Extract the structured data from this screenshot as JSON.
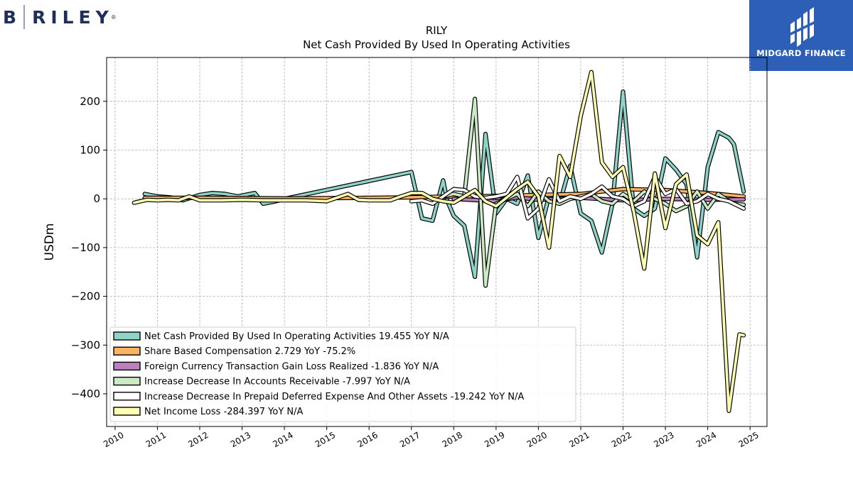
{
  "brand_left": {
    "b": "B",
    "riley": "RILEY",
    "reg": "®"
  },
  "brand_right": {
    "label": "MIDGARD FINANCE"
  },
  "chart_data": {
    "type": "line",
    "title": "RILY",
    "subtitle": "Net Cash Provided By Used In Operating Activities",
    "ylabel": "USDm",
    "xlim": [
      2009.8,
      2025.4
    ],
    "ylim": [
      -467,
      290
    ],
    "xticks": [
      2010,
      2011,
      2012,
      2013,
      2014,
      2015,
      2016,
      2017,
      2018,
      2019,
      2020,
      2021,
      2022,
      2023,
      2024,
      2025
    ],
    "xtick_labels": [
      "2010",
      "2011",
      "2012",
      "2013",
      "2014",
      "2015",
      "2016",
      "2017",
      "2018",
      "2019",
      "2020",
      "2021",
      "2022",
      "2023",
      "2024",
      "2025"
    ],
    "yticks": [
      200,
      100,
      0,
      -100,
      -200,
      -300,
      -400
    ],
    "ytick_labels": [
      "200",
      "100",
      "0",
      "−100",
      "−200",
      "−300",
      "−400"
    ],
    "grid": true,
    "legend_position": "lower-left",
    "series": [
      {
        "name": "Net Cash Provided By Used In Operating Activities  19.455 YoY N/A",
        "color": "#8dd3c7",
        "points": [
          [
            2010.7,
            10
          ],
          [
            2011.0,
            5
          ],
          [
            2011.3,
            3
          ],
          [
            2011.6,
            -3
          ],
          [
            2012.0,
            8
          ],
          [
            2012.3,
            12
          ],
          [
            2012.6,
            10
          ],
          [
            2012.9,
            5
          ],
          [
            2013.3,
            12
          ],
          [
            2013.5,
            -10
          ],
          [
            2013.8,
            -5
          ],
          [
            2014.0,
            0
          ],
          [
            2017.0,
            55
          ],
          [
            2017.25,
            -40
          ],
          [
            2017.5,
            -45
          ],
          [
            2017.75,
            38
          ],
          [
            2017.85,
            -5
          ],
          [
            2018.0,
            -35
          ],
          [
            2018.25,
            -55
          ],
          [
            2018.5,
            -160
          ],
          [
            2018.75,
            133
          ],
          [
            2019.0,
            -30
          ],
          [
            2019.25,
            0
          ],
          [
            2019.5,
            -10
          ],
          [
            2019.75,
            48
          ],
          [
            2020.0,
            -80
          ],
          [
            2020.25,
            5
          ],
          [
            2020.5,
            -10
          ],
          [
            2020.75,
            68
          ],
          [
            2021.0,
            -30
          ],
          [
            2021.25,
            -45
          ],
          [
            2021.5,
            -110
          ],
          [
            2021.75,
            -10
          ],
          [
            2022.0,
            220
          ],
          [
            2022.25,
            -20
          ],
          [
            2022.5,
            -35
          ],
          [
            2022.75,
            -20
          ],
          [
            2023.0,
            83
          ],
          [
            2023.25,
            60
          ],
          [
            2023.5,
            30
          ],
          [
            2023.75,
            -120
          ],
          [
            2024.0,
            65
          ],
          [
            2024.25,
            137
          ],
          [
            2024.5,
            125
          ],
          [
            2024.62,
            112
          ],
          [
            2024.85,
            15
          ]
        ]
      },
      {
        "name": "Share Based Compensation  2.729 YoY -75.2%",
        "color": "#fdb462",
        "points": [
          [
            2010.7,
            2
          ],
          [
            2012.0,
            2
          ],
          [
            2014.0,
            1
          ],
          [
            2016.0,
            2
          ],
          [
            2017.0,
            3
          ],
          [
            2018.0,
            5
          ],
          [
            2019.0,
            6
          ],
          [
            2020.0,
            8
          ],
          [
            2021.0,
            10
          ],
          [
            2022.0,
            20
          ],
          [
            2023.0,
            18
          ],
          [
            2024.0,
            12
          ],
          [
            2024.85,
            5
          ]
        ]
      },
      {
        "name": "Foreign Currency Transaction Gain Loss Realized  -1.836 YoY N/A",
        "color": "#bc80bd",
        "points": [
          [
            2018.0,
            0
          ],
          [
            2019.0,
            -5
          ],
          [
            2019.5,
            3
          ],
          [
            2020.0,
            -2
          ],
          [
            2021.0,
            2
          ],
          [
            2022.0,
            -3
          ],
          [
            2023.0,
            0
          ],
          [
            2024.0,
            -2
          ],
          [
            2024.85,
            -1
          ]
        ]
      },
      {
        "name": "Increase Decrease In Accounts Receivable  -7.997 YoY N/A",
        "color": "#ccebc5",
        "points": [
          [
            2017.75,
            5
          ],
          [
            2018.0,
            10
          ],
          [
            2018.25,
            5
          ],
          [
            2018.5,
            205
          ],
          [
            2018.75,
            -178
          ],
          [
            2019.0,
            -10
          ],
          [
            2019.5,
            10
          ],
          [
            2019.75,
            -15
          ],
          [
            2020.0,
            15
          ],
          [
            2020.25,
            -5
          ],
          [
            2020.5,
            -10
          ],
          [
            2020.75,
            0
          ],
          [
            2021.0,
            5
          ],
          [
            2021.25,
            10
          ],
          [
            2021.5,
            -5
          ],
          [
            2021.75,
            -10
          ],
          [
            2022.0,
            10
          ],
          [
            2022.25,
            -5
          ],
          [
            2022.5,
            15
          ],
          [
            2022.75,
            0
          ],
          [
            2023.0,
            -10
          ],
          [
            2023.25,
            -25
          ],
          [
            2023.5,
            -15
          ],
          [
            2023.75,
            15
          ],
          [
            2024.0,
            -20
          ],
          [
            2024.25,
            10
          ],
          [
            2024.5,
            -5
          ],
          [
            2024.62,
            -10
          ],
          [
            2024.85,
            -12
          ]
        ]
      },
      {
        "name": "Increase Decrease In Prepaid Deferred Expense And Other Assets  -19.242 YoY N/A",
        "color": "#ffffff",
        "points": [
          [
            2017.0,
            -5
          ],
          [
            2017.25,
            -3
          ],
          [
            2017.5,
            -10
          ],
          [
            2017.75,
            5
          ],
          [
            2018.0,
            20
          ],
          [
            2018.25,
            18
          ],
          [
            2018.5,
            5
          ],
          [
            2018.75,
            2
          ],
          [
            2019.0,
            5
          ],
          [
            2019.25,
            10
          ],
          [
            2019.5,
            45
          ],
          [
            2019.75,
            -40
          ],
          [
            2020.0,
            -20
          ],
          [
            2020.25,
            40
          ],
          [
            2020.5,
            -5
          ],
          [
            2020.75,
            5
          ],
          [
            2021.0,
            0
          ],
          [
            2021.25,
            10
          ],
          [
            2021.5,
            25
          ],
          [
            2021.75,
            5
          ],
          [
            2022.0,
            0
          ],
          [
            2022.25,
            -15
          ],
          [
            2022.5,
            -5
          ],
          [
            2022.75,
            45
          ],
          [
            2023.0,
            10
          ],
          [
            2023.25,
            20
          ],
          [
            2023.5,
            -10
          ],
          [
            2023.75,
            -5
          ],
          [
            2024.0,
            10
          ],
          [
            2024.25,
            0
          ],
          [
            2024.5,
            -5
          ],
          [
            2024.62,
            -10
          ],
          [
            2024.85,
            -20
          ]
        ]
      },
      {
        "name": "Net Income Loss  -284.397 YoY N/A",
        "color": "#ffffb3",
        "points": [
          [
            2010.45,
            -8
          ],
          [
            2010.75,
            -2
          ],
          [
            2011.0,
            -3
          ],
          [
            2011.25,
            -2
          ],
          [
            2011.5,
            -3
          ],
          [
            2011.75,
            5
          ],
          [
            2012.0,
            -3
          ],
          [
            2012.5,
            -3
          ],
          [
            2013.0,
            -2
          ],
          [
            2013.5,
            -3
          ],
          [
            2014.0,
            -3
          ],
          [
            2014.5,
            -3
          ],
          [
            2015.0,
            -5
          ],
          [
            2015.5,
            10
          ],
          [
            2015.75,
            -2
          ],
          [
            2016.0,
            -3
          ],
          [
            2016.5,
            -3
          ],
          [
            2016.75,
            5
          ],
          [
            2017.0,
            12
          ],
          [
            2017.25,
            12
          ],
          [
            2017.5,
            0
          ],
          [
            2017.75,
            -5
          ],
          [
            2018.0,
            -8
          ],
          [
            2018.5,
            18
          ],
          [
            2018.75,
            -5
          ],
          [
            2019.0,
            -15
          ],
          [
            2019.5,
            20
          ],
          [
            2019.75,
            35
          ],
          [
            2020.0,
            5
          ],
          [
            2020.25,
            -100
          ],
          [
            2020.5,
            88
          ],
          [
            2020.75,
            45
          ],
          [
            2021.0,
            170
          ],
          [
            2021.25,
            260
          ],
          [
            2021.5,
            75
          ],
          [
            2021.75,
            45
          ],
          [
            2022.0,
            65
          ],
          [
            2022.25,
            -25
          ],
          [
            2022.5,
            -143
          ],
          [
            2022.75,
            52
          ],
          [
            2023.0,
            -60
          ],
          [
            2023.25,
            30
          ],
          [
            2023.5,
            50
          ],
          [
            2023.75,
            -75
          ],
          [
            2024.0,
            -93
          ],
          [
            2024.25,
            -48
          ],
          [
            2024.5,
            -435
          ],
          [
            2024.75,
            -278
          ],
          [
            2024.85,
            -280
          ]
        ]
      }
    ]
  }
}
